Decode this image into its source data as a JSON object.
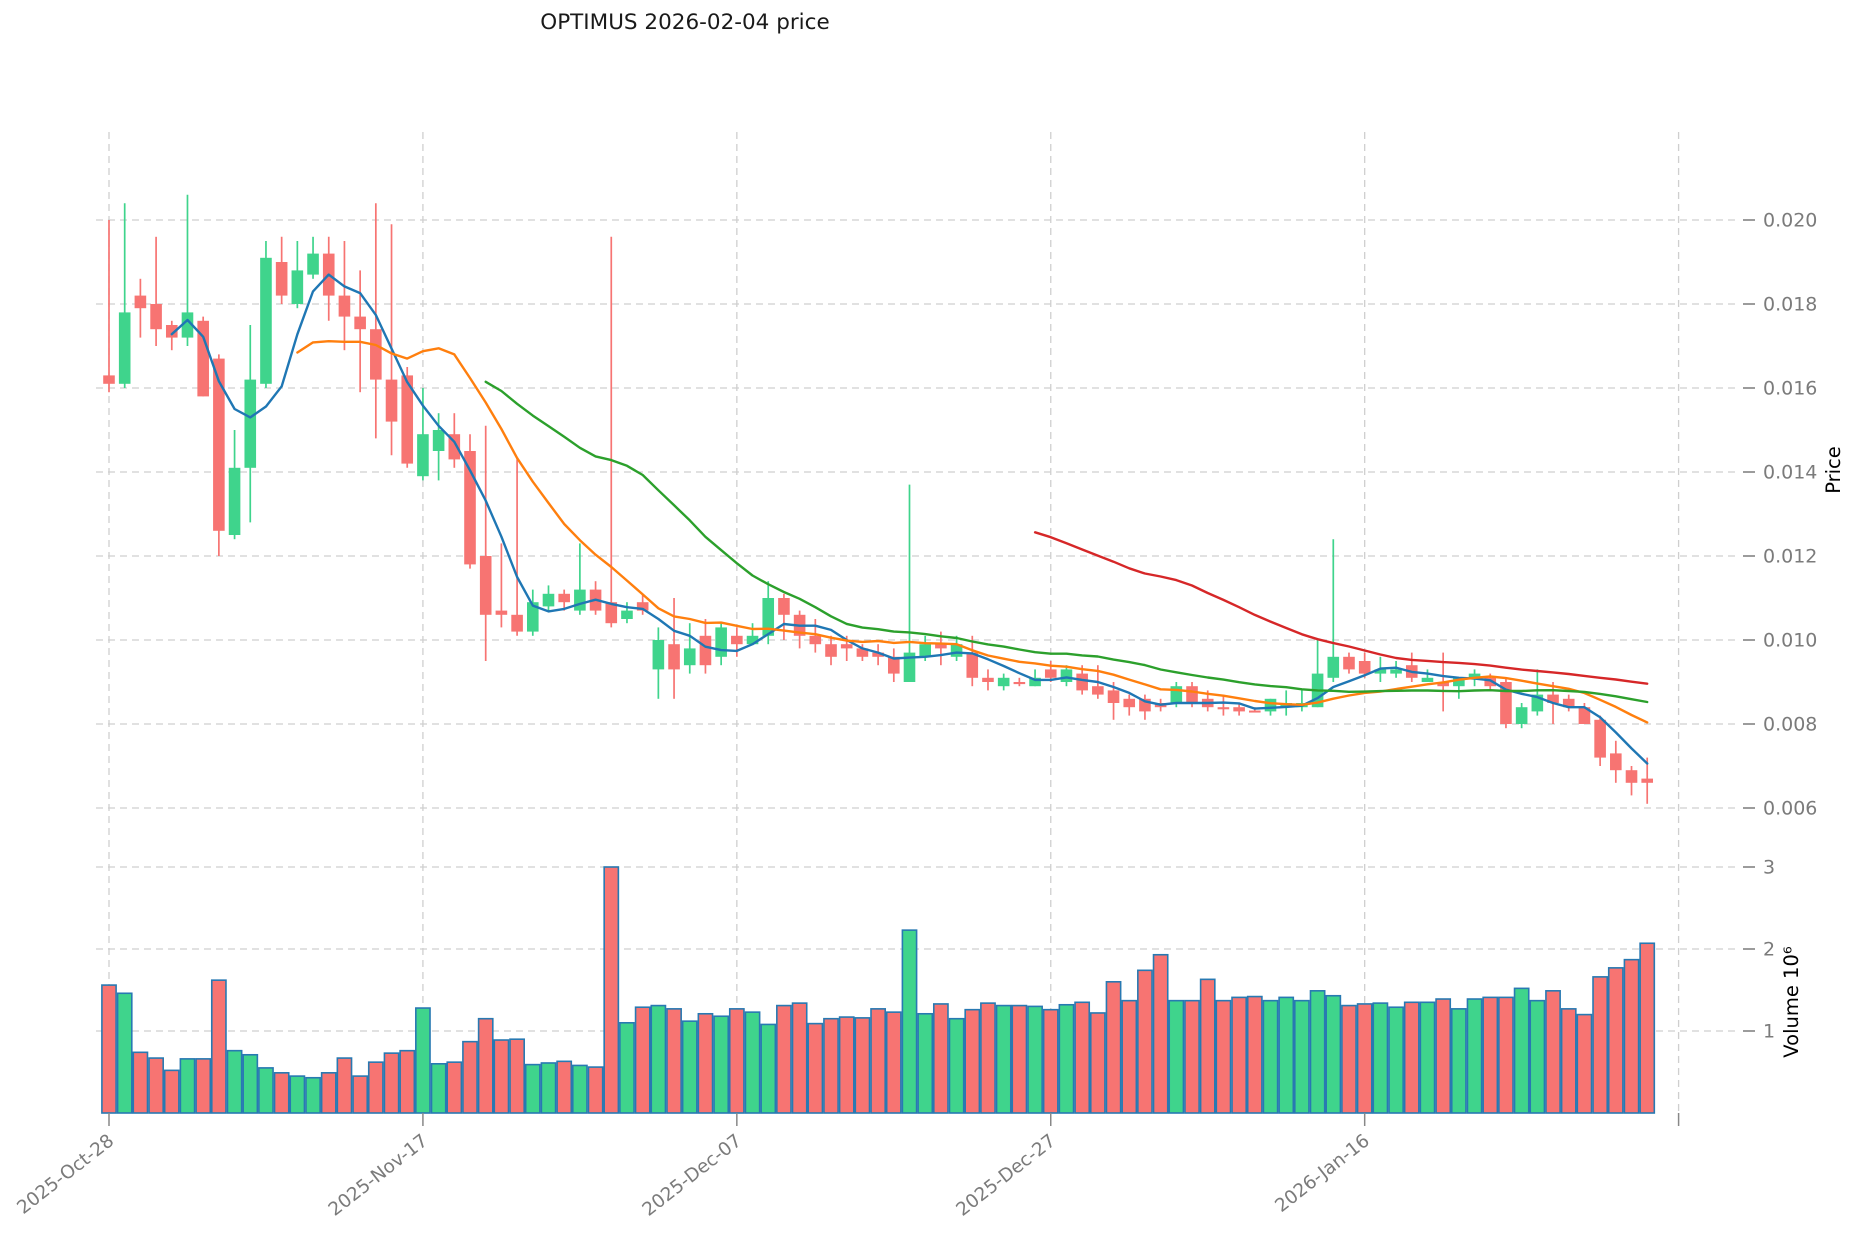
{
  "title": "OPTIMUS  2026-02-04  price",
  "axes": {
    "price_axis_label": "Price",
    "volume_axis_label": "Volume 10⁶",
    "price_tick_labels": [
      "0.020",
      "0.018",
      "0.016",
      "0.014",
      "0.012",
      "0.010",
      "0.008",
      "0.006"
    ],
    "price_tick_values": [
      0.02,
      0.018,
      0.016,
      0.014,
      0.012,
      0.01,
      0.008,
      0.006
    ],
    "volume_tick_labels": [
      "1",
      "2",
      "3"
    ],
    "volume_tick_values": [
      1,
      2,
      3
    ],
    "x_tick_labels": [
      "2025-Oct-28",
      "2025-Nov-17",
      "2025-Dec-07",
      "2025-Dec-27",
      "2026-Jan-16",
      ""
    ],
    "x_tick_indices": [
      0,
      20,
      40,
      60,
      80,
      100
    ]
  },
  "chart_data": {
    "type": "candlestick",
    "title": "OPTIMUS  2026-02-04  price",
    "xlabel": "",
    "ylabel": "Price",
    "volume_ylabel": "Volume 10^6",
    "price_ylim": [
      0.0052,
      0.0221
    ],
    "volume_ylim": [
      0,
      3.2
    ],
    "grid": true,
    "dates": [
      "2025-10-28",
      "2025-10-29",
      "2025-10-30",
      "2025-10-31",
      "2025-11-01",
      "2025-11-02",
      "2025-11-03",
      "2025-11-04",
      "2025-11-05",
      "2025-11-06",
      "2025-11-07",
      "2025-11-08",
      "2025-11-09",
      "2025-11-10",
      "2025-11-11",
      "2025-11-12",
      "2025-11-13",
      "2025-11-14",
      "2025-11-15",
      "2025-11-16",
      "2025-11-17",
      "2025-11-18",
      "2025-11-19",
      "2025-11-20",
      "2025-11-21",
      "2025-11-22",
      "2025-11-23",
      "2025-11-24",
      "2025-11-25",
      "2025-11-26",
      "2025-11-27",
      "2025-11-28",
      "2025-11-29",
      "2025-11-30",
      "2025-12-01",
      "2025-12-02",
      "2025-12-03",
      "2025-12-04",
      "2025-12-05",
      "2025-12-06",
      "2025-12-07",
      "2025-12-08",
      "2025-12-09",
      "2025-12-10",
      "2025-12-11",
      "2025-12-12",
      "2025-12-13",
      "2025-12-14",
      "2025-12-15",
      "2025-12-16",
      "2025-12-17",
      "2025-12-18",
      "2025-12-19",
      "2025-12-20",
      "2025-12-21",
      "2025-12-22",
      "2025-12-23",
      "2025-12-24",
      "2025-12-25",
      "2025-12-26",
      "2025-12-27",
      "2025-12-28",
      "2025-12-29",
      "2025-12-30",
      "2025-12-31",
      "2026-01-01",
      "2026-01-02",
      "2026-01-03",
      "2026-01-04",
      "2026-01-05",
      "2026-01-06",
      "2026-01-07",
      "2026-01-08",
      "2026-01-09",
      "2026-01-10",
      "2026-01-11",
      "2026-01-12",
      "2026-01-13",
      "2026-01-14",
      "2026-01-15",
      "2026-01-16",
      "2026-01-17",
      "2026-01-18",
      "2026-01-19",
      "2026-01-20",
      "2026-01-21",
      "2026-01-22",
      "2026-01-23",
      "2026-01-24",
      "2026-01-25",
      "2026-01-26",
      "2026-01-27",
      "2026-01-28",
      "2026-01-29",
      "2026-01-30",
      "2026-01-31",
      "2026-02-01",
      "2026-02-02",
      "2026-02-03"
    ],
    "ohlc": [
      [
        0.0163,
        0.02,
        0.0159,
        0.0161
      ],
      [
        0.0161,
        0.0204,
        0.016,
        0.0178
      ],
      [
        0.0182,
        0.0186,
        0.0172,
        0.0179
      ],
      [
        0.018,
        0.0196,
        0.017,
        0.0174
      ],
      [
        0.0175,
        0.0176,
        0.0169,
        0.0172
      ],
      [
        0.0172,
        0.0206,
        0.017,
        0.0178
      ],
      [
        0.0176,
        0.0177,
        0.0158,
        0.0158
      ],
      [
        0.0167,
        0.0168,
        0.012,
        0.0126
      ],
      [
        0.0125,
        0.015,
        0.0124,
        0.0141
      ],
      [
        0.0141,
        0.0175,
        0.0128,
        0.0162
      ],
      [
        0.0161,
        0.0195,
        0.016,
        0.0191
      ],
      [
        0.019,
        0.0196,
        0.018,
        0.0182
      ],
      [
        0.018,
        0.0195,
        0.0179,
        0.0188
      ],
      [
        0.0187,
        0.0196,
        0.0186,
        0.0192
      ],
      [
        0.0192,
        0.0196,
        0.0176,
        0.0182
      ],
      [
        0.0182,
        0.0195,
        0.0169,
        0.0177
      ],
      [
        0.0177,
        0.0188,
        0.0159,
        0.0174
      ],
      [
        0.0174,
        0.0204,
        0.0148,
        0.0162
      ],
      [
        0.0162,
        0.0199,
        0.0144,
        0.0152
      ],
      [
        0.0163,
        0.0165,
        0.0141,
        0.0142
      ],
      [
        0.0139,
        0.016,
        0.0138,
        0.0149
      ],
      [
        0.0145,
        0.0154,
        0.0138,
        0.015
      ],
      [
        0.0149,
        0.0154,
        0.0141,
        0.0143
      ],
      [
        0.0145,
        0.0149,
        0.0117,
        0.0118
      ],
      [
        0.012,
        0.0151,
        0.0095,
        0.0106
      ],
      [
        0.0107,
        0.0123,
        0.0103,
        0.0106
      ],
      [
        0.0106,
        0.0143,
        0.0101,
        0.0102
      ],
      [
        0.0102,
        0.0112,
        0.0101,
        0.0109
      ],
      [
        0.0108,
        0.0113,
        0.0107,
        0.0111
      ],
      [
        0.0111,
        0.0112,
        0.0107,
        0.0109
      ],
      [
        0.0107,
        0.0123,
        0.0106,
        0.0112
      ],
      [
        0.0112,
        0.0114,
        0.0106,
        0.0107
      ],
      [
        0.0109,
        0.0196,
        0.0103,
        0.0104
      ],
      [
        0.0105,
        0.0109,
        0.0104,
        0.0107
      ],
      [
        0.0109,
        0.0111,
        0.0106,
        0.0107
      ],
      [
        0.0093,
        0.0103,
        0.0086,
        0.01
      ],
      [
        0.0099,
        0.011,
        0.0086,
        0.0093
      ],
      [
        0.0094,
        0.0104,
        0.0092,
        0.0098
      ],
      [
        0.0101,
        0.0105,
        0.0092,
        0.0094
      ],
      [
        0.0096,
        0.0104,
        0.0094,
        0.0103
      ],
      [
        0.0101,
        0.0103,
        0.0096,
        0.0099
      ],
      [
        0.0099,
        0.0104,
        0.0099,
        0.0101
      ],
      [
        0.0101,
        0.0114,
        0.0099,
        0.011
      ],
      [
        0.011,
        0.0111,
        0.01,
        0.0106
      ],
      [
        0.0106,
        0.0107,
        0.0098,
        0.0101
      ],
      [
        0.0101,
        0.0105,
        0.0097,
        0.0099
      ],
      [
        0.0099,
        0.0101,
        0.0094,
        0.0096
      ],
      [
        0.0099,
        0.0101,
        0.0095,
        0.0098
      ],
      [
        0.0098,
        0.0099,
        0.0095,
        0.0096
      ],
      [
        0.0097,
        0.0099,
        0.0094,
        0.0096
      ],
      [
        0.0096,
        0.0098,
        0.009,
        0.0092
      ],
      [
        0.009,
        0.0137,
        0.009,
        0.0097
      ],
      [
        0.0096,
        0.0101,
        0.0095,
        0.0099
      ],
      [
        0.0099,
        0.0102,
        0.0094,
        0.0098
      ],
      [
        0.0096,
        0.0101,
        0.0095,
        0.0099
      ],
      [
        0.0097,
        0.0101,
        0.0089,
        0.0091
      ],
      [
        0.0091,
        0.0093,
        0.0088,
        0.009
      ],
      [
        0.0089,
        0.0092,
        0.0088,
        0.0091
      ],
      [
        0.009,
        0.0091,
        0.0089,
        0.00895
      ],
      [
        0.0089,
        0.0093,
        0.0089,
        0.0091
      ],
      [
        0.0093,
        0.0095,
        0.009,
        0.0091
      ],
      [
        0.009,
        0.0094,
        0.0089,
        0.0093
      ],
      [
        0.0092,
        0.0094,
        0.0087,
        0.0088
      ],
      [
        0.0089,
        0.0094,
        0.0086,
        0.0087
      ],
      [
        0.0088,
        0.009,
        0.0081,
        0.0085
      ],
      [
        0.0086,
        0.0087,
        0.0082,
        0.0084
      ],
      [
        0.0086,
        0.0087,
        0.0081,
        0.0083
      ],
      [
        0.0085,
        0.0086,
        0.0083,
        0.0084
      ],
      [
        0.0085,
        0.009,
        0.0084,
        0.0089
      ],
      [
        0.0089,
        0.009,
        0.0084,
        0.0085
      ],
      [
        0.0086,
        0.0088,
        0.0083,
        0.0084
      ],
      [
        0.0084,
        0.0087,
        0.0082,
        0.00835
      ],
      [
        0.0084,
        0.0085,
        0.0082,
        0.0083
      ],
      [
        0.00832,
        0.0084,
        0.0083,
        0.00828
      ],
      [
        0.0083,
        0.0086,
        0.0082,
        0.0086
      ],
      [
        0.0084,
        0.0088,
        0.0082,
        0.0085
      ],
      [
        0.0084,
        0.0088,
        0.0083,
        0.0085
      ],
      [
        0.0084,
        0.01,
        0.0084,
        0.0092
      ],
      [
        0.0091,
        0.0124,
        0.009,
        0.0096
      ],
      [
        0.0096,
        0.0097,
        0.0092,
        0.0093
      ],
      [
        0.0095,
        0.0097,
        0.0091,
        0.0092
      ],
      [
        0.0092,
        0.0096,
        0.009,
        0.0093
      ],
      [
        0.0092,
        0.0095,
        0.0091,
        0.0093
      ],
      [
        0.0094,
        0.0097,
        0.009,
        0.0091
      ],
      [
        0.009,
        0.0093,
        0.009,
        0.0091
      ],
      [
        0.009,
        0.0097,
        0.0083,
        0.0089
      ],
      [
        0.0089,
        0.0091,
        0.0086,
        0.0091
      ],
      [
        0.0091,
        0.0093,
        0.0089,
        0.0092
      ],
      [
        0.0091,
        0.0092,
        0.0088,
        0.0089
      ],
      [
        0.009,
        0.0091,
        0.0079,
        0.008
      ],
      [
        0.008,
        0.0085,
        0.0079,
        0.0084
      ],
      [
        0.0083,
        0.0093,
        0.0082,
        0.0087
      ],
      [
        0.0087,
        0.009,
        0.008,
        0.0085
      ],
      [
        0.0086,
        0.0087,
        0.0083,
        0.0084
      ],
      [
        0.0084,
        0.0085,
        0.008,
        0.008
      ],
      [
        0.0081,
        0.0082,
        0.007,
        0.0072
      ],
      [
        0.0073,
        0.0076,
        0.0066,
        0.0069
      ],
      [
        0.0069,
        0.007,
        0.0063,
        0.0066
      ],
      [
        0.0067,
        0.0072,
        0.0061,
        0.0066
      ]
    ],
    "volume_millions": [
      1.56,
      1.46,
      0.74,
      0.67,
      0.52,
      0.66,
      0.66,
      1.62,
      0.76,
      0.71,
      0.55,
      0.49,
      0.45,
      0.43,
      0.49,
      0.67,
      0.45,
      0.62,
      0.73,
      0.76,
      1.28,
      0.6,
      0.62,
      0.87,
      1.15,
      0.89,
      0.9,
      0.59,
      0.61,
      0.63,
      0.58,
      0.56,
      3.0,
      1.1,
      1.29,
      1.31,
      1.27,
      1.12,
      1.21,
      1.18,
      1.27,
      1.23,
      1.08,
      1.31,
      1.34,
      1.09,
      1.15,
      1.17,
      1.16,
      1.27,
      1.23,
      2.23,
      1.21,
      1.33,
      1.15,
      1.26,
      1.34,
      1.31,
      1.31,
      1.3,
      1.26,
      1.32,
      1.35,
      1.22,
      1.6,
      1.37,
      1.74,
      1.93,
      1.37,
      1.37,
      1.63,
      1.37,
      1.41,
      1.42,
      1.37,
      1.41,
      1.37,
      1.49,
      1.43,
      1.31,
      1.33,
      1.34,
      1.29,
      1.35,
      1.35,
      1.39,
      1.27,
      1.39,
      1.41,
      1.41,
      1.52,
      1.37,
      1.49,
      1.27,
      1.2,
      1.66,
      1.77,
      1.87,
      2.07
    ],
    "moving_averages": [
      {
        "name": "MA5",
        "window": 5,
        "color": "#1f77b4"
      },
      {
        "name": "MA13",
        "window": 13,
        "color": "#ff7f0e"
      },
      {
        "name": "MA25",
        "window": 25,
        "color": "#2ca02c"
      },
      {
        "name": "MA60",
        "window": 60,
        "color": "#d62728"
      }
    ],
    "legend_position": "none",
    "colors": {
      "up": "#3fd48c",
      "down": "#f77472",
      "volume_edge": "#2879b2",
      "grid": "#cfcfcf",
      "tick_text": "#7b7b7b",
      "title_text": "#1a1a1a",
      "axis_label_text": "#222222"
    }
  }
}
